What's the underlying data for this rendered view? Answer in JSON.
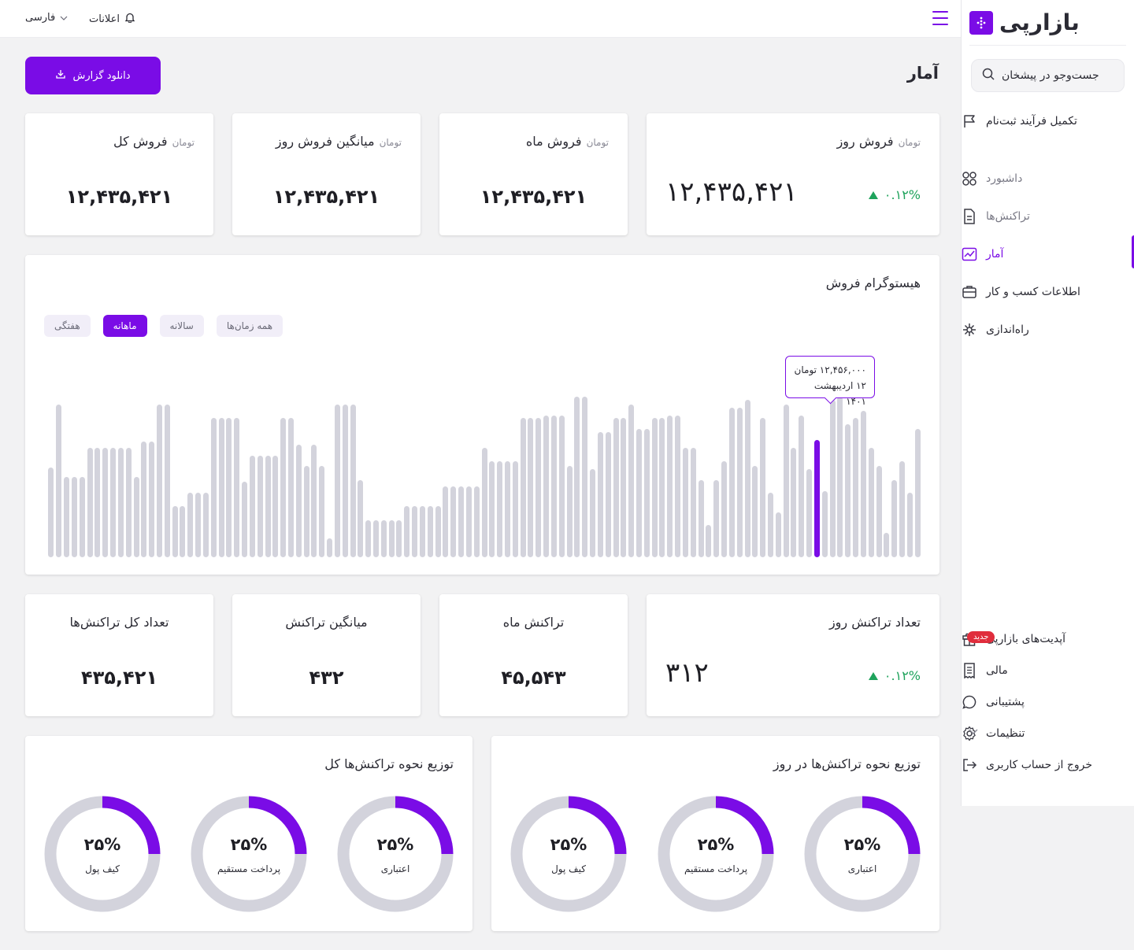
{
  "brand": {
    "name": "بازارپی"
  },
  "search": {
    "placeholder": "جست‌وجو در پیشخان"
  },
  "sidebar": {
    "onboarding": "تکمیل فرآیند ثبت‌نام",
    "items": [
      {
        "label": "داشبورد",
        "icon": "grid-icon"
      },
      {
        "label": "تراکنش‌ها",
        "icon": "document-icon"
      },
      {
        "label": "آمار",
        "icon": "chart-line-icon"
      },
      {
        "label": "اطلاعات کسب و کار",
        "icon": "briefcase-icon"
      },
      {
        "label": "راه‌اندازی",
        "icon": "sparkle-icon"
      }
    ],
    "bottom": [
      {
        "label": "آپدیت‌های بازارپی",
        "icon": "gift-icon",
        "badge": "جدید"
      },
      {
        "label": "مالی",
        "icon": "receipt-icon"
      },
      {
        "label": "پشتیبانی",
        "icon": "chat-icon"
      },
      {
        "label": "تنظیمات",
        "icon": "gear-icon"
      },
      {
        "label": "خروج از حساب کاربری",
        "icon": "logout-icon"
      }
    ]
  },
  "topbar": {
    "notifications": "اعلانات",
    "language": "فارسی"
  },
  "page": {
    "title": "آمار",
    "download": "دانلود گزارش"
  },
  "sales_cards": [
    {
      "title": "فروش روز",
      "unit": "تومان",
      "value": "۱۲,۴۳۵,۴۲۱",
      "change": "۰.۱۲%"
    },
    {
      "title": "فروش ماه",
      "unit": "تومان",
      "value": "۱۲,۴۳۵,۴۲۱"
    },
    {
      "title": "میانگین فروش روز",
      "unit": "تومان",
      "value": "۱۲,۴۳۵,۴۲۱"
    },
    {
      "title": "فروش کل",
      "unit": "تومان",
      "value": "۱۲,۴۳۵,۴۲۱"
    }
  ],
  "histogram": {
    "title": "هیستوگرام فروش",
    "filters": [
      "همه زمان‌ها",
      "سالانه",
      "ماهانه",
      "هفتگی"
    ],
    "active_filter": "ماهانه",
    "tooltip": {
      "amount": "۱۲,۴۵۶,۰۰۰ تومان",
      "date": "۱۲ اردیبهشت ۱۴۰۱"
    }
  },
  "tx_cards": [
    {
      "title": "تعداد تراکنش روز",
      "value": "۳۱۲",
      "change": "۰.۱۲%"
    },
    {
      "title": "تراکنش ماه",
      "value": "۴۵,۵۴۳"
    },
    {
      "title": "میانگین تراکنش",
      "value": "۴۳۲"
    },
    {
      "title": "تعداد کل تراکنش‌ها",
      "value": "۴۳۵,۴۲۱"
    }
  ],
  "distribution": {
    "daily": {
      "title": "توزیع نحوه تراکنش‌ها در روز",
      "items": [
        {
          "label": "اعتباری",
          "percent": "۲۵%",
          "fraction": 0.25
        },
        {
          "label": "پرداخت مستقیم",
          "percent": "۲۵%",
          "fraction": 0.25
        },
        {
          "label": "کیف پول",
          "percent": "۲۵%",
          "fraction": 0.25
        }
      ]
    },
    "total": {
      "title": "توزیع نحوه تراکنش‌ها کل",
      "items": [
        {
          "label": "اعتباری",
          "percent": "۲۵%",
          "fraction": 0.25
        },
        {
          "label": "پرداخت مستقیم",
          "percent": "۲۵%",
          "fraction": 0.25
        },
        {
          "label": "کیف پول",
          "percent": "۲۵%",
          "fraction": 0.25
        }
      ]
    }
  },
  "colors": {
    "accent": "#7a0ce6",
    "positive": "#1fa35c",
    "bar": "#d3d3dc",
    "badge": "#e02d3c"
  },
  "chart_data": {
    "type": "bar",
    "highlight_index": 99,
    "values": [
      56,
      95,
      50,
      50,
      50,
      68,
      68,
      68,
      68,
      68,
      68,
      50,
      72,
      72,
      95,
      95,
      32,
      32,
      40,
      40,
      40,
      87,
      87,
      87,
      87,
      47,
      63,
      63,
      63,
      63,
      87,
      87,
      70,
      57,
      70,
      57,
      12,
      95,
      95,
      95,
      48,
      23,
      23,
      23,
      23,
      23,
      32,
      32,
      32,
      32,
      32,
      44,
      44,
      44,
      44,
      44,
      68,
      60,
      60,
      60,
      60,
      87,
      87,
      87,
      88,
      88,
      88,
      57,
      100,
      100,
      55,
      78,
      78,
      87,
      87,
      95,
      80,
      80,
      87,
      87,
      88,
      88,
      68,
      68,
      48,
      20,
      48,
      60,
      93,
      93,
      98,
      57,
      87,
      40,
      28,
      95,
      68,
      88,
      55,
      73,
      41,
      98,
      100,
      83,
      87,
      91,
      68,
      57,
      15,
      48,
      60,
      40,
      80
    ]
  }
}
